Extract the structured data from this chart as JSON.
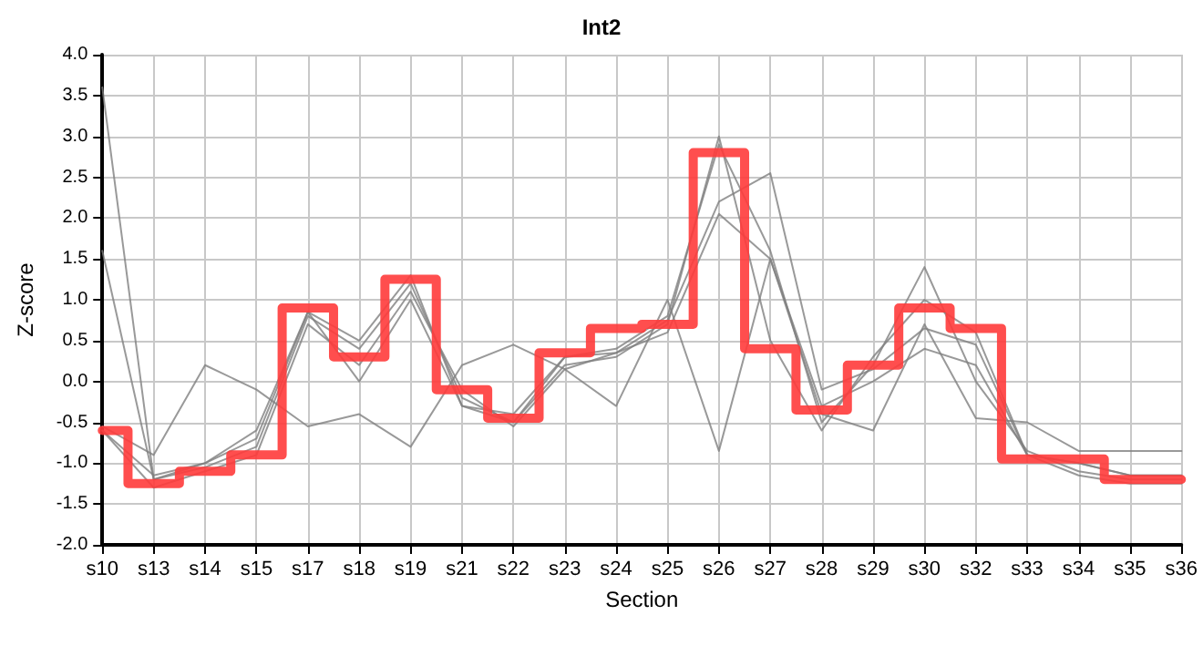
{
  "chart_data": {
    "type": "line",
    "title": "Int2",
    "xlabel": "Section",
    "ylabel": "Z-score",
    "categories": [
      "s10",
      "s13",
      "s14",
      "s15",
      "s17",
      "s18",
      "s19",
      "s21",
      "s22",
      "s23",
      "s24",
      "s25",
      "s26",
      "s27",
      "s28",
      "s29",
      "s30",
      "s32",
      "s33",
      "s34",
      "s35",
      "s36"
    ],
    "ylim": [
      -2,
      4
    ],
    "yticks": [
      {
        "value": -2,
        "label": "-2.0"
      },
      {
        "value": -1.5,
        "label": "-1.5"
      },
      {
        "value": -1,
        "label": "-1.0"
      },
      {
        "value": -0.5,
        "label": "-0.5"
      },
      {
        "value": 0,
        "label": "0.0"
      },
      {
        "value": 0.5,
        "label": "0.5"
      },
      {
        "value": 1,
        "label": "1.0"
      },
      {
        "value": 1.5,
        "label": "1.5"
      },
      {
        "value": 2,
        "label": "2.0"
      },
      {
        "value": 2.5,
        "label": "2.5"
      },
      {
        "value": 3,
        "label": "3.0"
      },
      {
        "value": 3.5,
        "label": "3.5"
      },
      {
        "value": 4,
        "label": "4.0"
      }
    ],
    "grid": true,
    "marker": "none",
    "line_style": "solid",
    "series": [
      {
        "color": "#808080",
        "values": [
          3.6,
          -1.2,
          -1.0,
          -0.6,
          0.85,
          0.5,
          1.3,
          -0.3,
          -0.4,
          0.3,
          0.4,
          0.8,
          2.9,
          1.6,
          -0.5,
          0.2,
          1.4,
          0.0,
          -0.85,
          -1.1,
          -1.2,
          -1.2
        ]
      },
      {
        "color": "#808080",
        "values": [
          1.6,
          -1.2,
          -1.05,
          -0.8,
          0.8,
          0.4,
          1.2,
          -0.2,
          -0.5,
          0.2,
          0.3,
          0.7,
          3.0,
          0.5,
          -0.6,
          0.3,
          1.0,
          0.6,
          -0.9,
          -1.0,
          -1.15,
          -1.15
        ]
      },
      {
        "color": "#808080",
        "values": [
          -0.55,
          -0.9,
          0.2,
          -0.1,
          -0.55,
          -0.4,
          -0.8,
          0.2,
          0.45,
          0.15,
          -0.3,
          1.0,
          -0.85,
          1.5,
          -0.4,
          -0.6,
          0.7,
          -0.45,
          -0.5,
          -0.85,
          -0.85,
          -0.85
        ]
      },
      {
        "color": "#808080",
        "values": [
          -0.6,
          -1.15,
          -1.0,
          -0.7,
          0.85,
          0.0,
          1.0,
          -0.3,
          -0.5,
          0.3,
          0.35,
          0.75,
          2.2,
          2.55,
          -0.1,
          0.15,
          0.65,
          0.45,
          -0.9,
          -1.0,
          -1.15,
          -1.15
        ]
      },
      {
        "color": "#808080",
        "values": [
          -0.6,
          -1.3,
          -1.1,
          -0.9,
          0.7,
          0.2,
          1.1,
          -0.1,
          -0.55,
          0.15,
          0.35,
          0.6,
          2.05,
          1.5,
          -0.3,
          0.0,
          0.4,
          0.2,
          -0.9,
          -1.15,
          -1.25,
          -1.25
        ]
      },
      {
        "type": "step",
        "color": "#ff3b3b",
        "values": [
          -0.6,
          -1.25,
          -1.1,
          -0.9,
          0.9,
          0.3,
          1.25,
          -0.1,
          -0.45,
          0.35,
          0.65,
          0.7,
          2.8,
          0.4,
          -0.35,
          0.2,
          0.9,
          0.65,
          -0.95,
          -0.95,
          -1.2,
          -1.2
        ]
      }
    ]
  }
}
